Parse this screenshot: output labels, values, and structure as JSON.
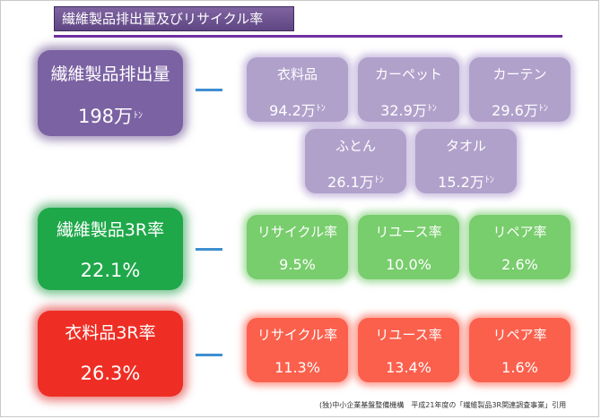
{
  "title": "繊維製品排出量及びリサイクル率",
  "unit": "ﾄﾝ",
  "emission": {
    "label": "繊維製品排出量",
    "value": "198万",
    "items": [
      {
        "label": "衣料品",
        "value": "94.2万"
      },
      {
        "label": "カーペット",
        "value": "32.9万"
      },
      {
        "label": "カーテン",
        "value": "29.6万"
      },
      {
        "label": "ふとん",
        "value": "26.1万"
      },
      {
        "label": "タオル",
        "value": "15.2万"
      }
    ]
  },
  "textile3r": {
    "label": "繊維製品3R率",
    "value": "22.1%",
    "items": [
      {
        "label": "リサイクル率",
        "value": "9.5%"
      },
      {
        "label": "リユース率",
        "value": "10.0%"
      },
      {
        "label": "リペア率",
        "value": "2.6%"
      }
    ]
  },
  "clothing3r": {
    "label": "衣料品3R率",
    "value": "26.3%",
    "items": [
      {
        "label": "リサイクル率",
        "value": "11.3%"
      },
      {
        "label": "リユース率",
        "value": "13.4%"
      },
      {
        "label": "リペア率",
        "value": "1.6%"
      }
    ]
  },
  "footnote": "(独)中小企業基盤整備機構　平成21年度の「繊維製品3R関連調査事業」引用"
}
